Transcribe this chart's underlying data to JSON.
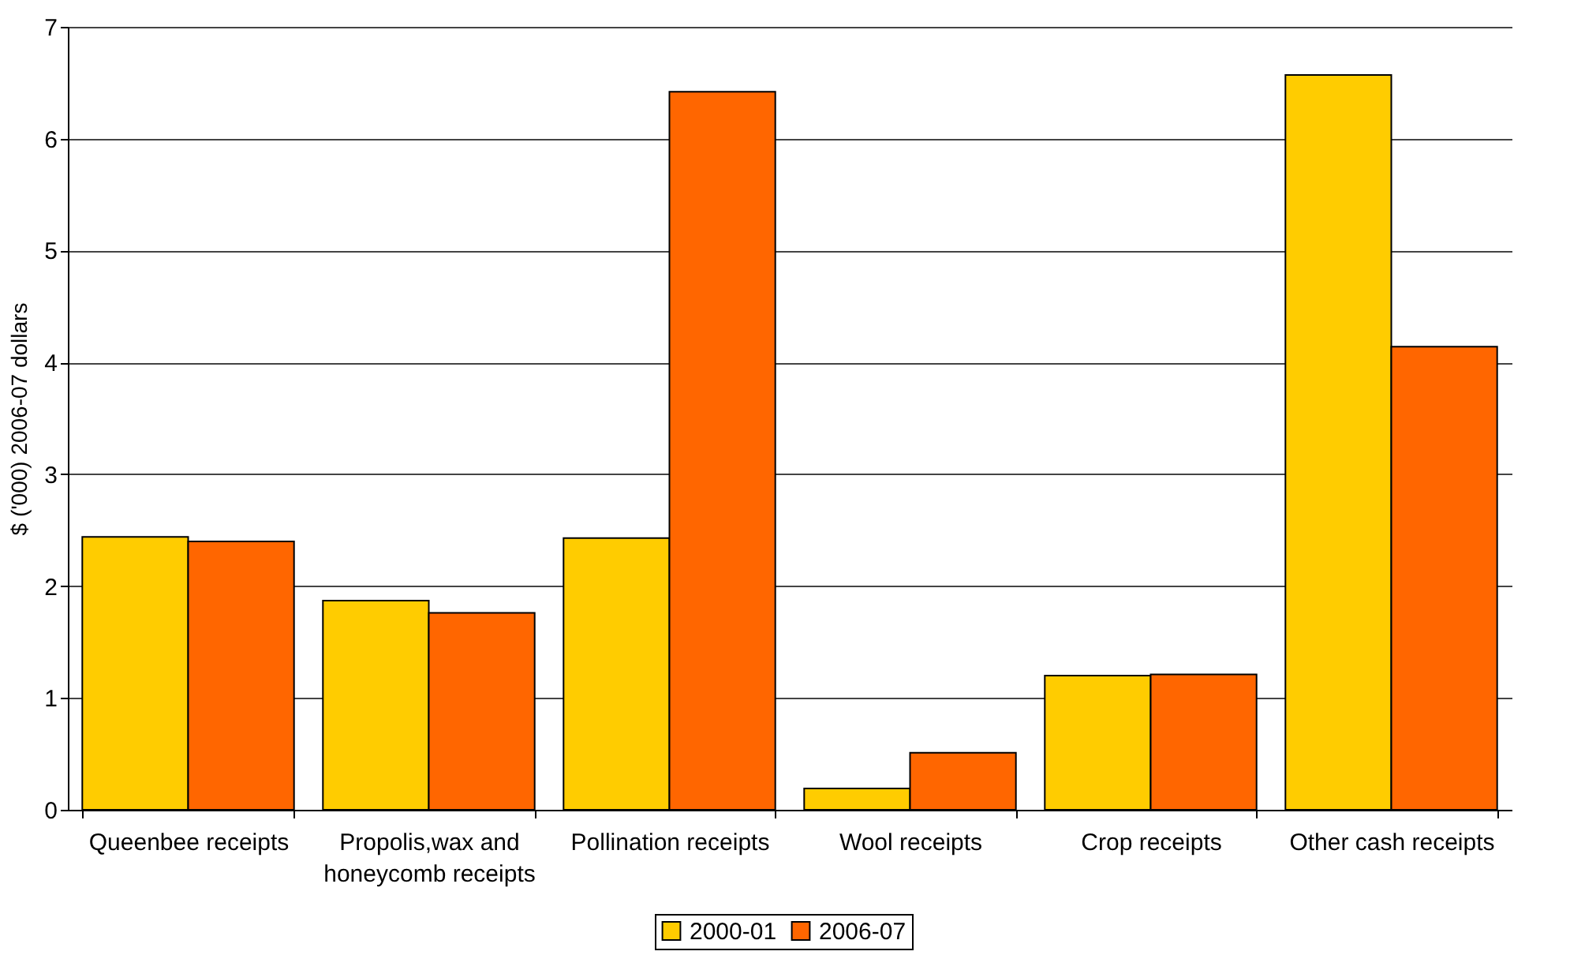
{
  "chart_data": {
    "type": "bar",
    "ylabel": "$ ('000) 2006-07 dollars",
    "categories": [
      "Queenbee receipts",
      "Propolis,wax and honeycomb receipts",
      "Pollination receipts",
      "Wool receipts",
      "Crop receipts",
      "Other cash receipts"
    ],
    "series": [
      {
        "name": "2000-01",
        "color": "#ffcc00",
        "values": [
          2.44,
          1.87,
          2.43,
          0.19,
          1.2,
          6.57
        ]
      },
      {
        "name": "2006-07",
        "color": "#ff6600",
        "values": [
          2.4,
          1.76,
          6.42,
          0.51,
          1.21,
          4.14
        ]
      }
    ],
    "ylim": [
      0,
      7
    ],
    "yticks": [
      0,
      1,
      2,
      3,
      4,
      5,
      6,
      7
    ],
    "grid": "y",
    "legend": "bottom"
  }
}
